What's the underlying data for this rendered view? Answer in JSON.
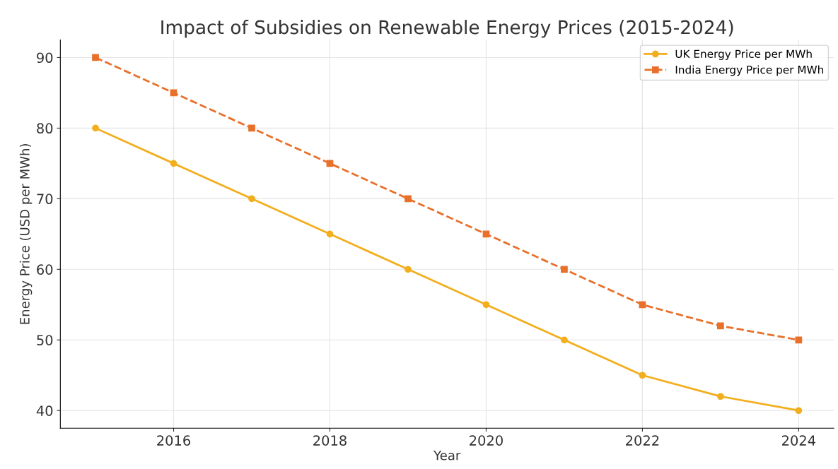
{
  "chart_data": {
    "type": "line",
    "title": "Impact of Subsidies on Renewable Energy Prices (2015-2024)",
    "xlabel": "Year",
    "ylabel": "Energy Price (USD per MWh)",
    "x": [
      2015,
      2016,
      2017,
      2018,
      2019,
      2020,
      2021,
      2022,
      2023,
      2024
    ],
    "series": [
      {
        "name": "UK Energy Price per MWh",
        "color": "#f2ae1c",
        "marker": "circle",
        "line_style": "solid",
        "values": [
          80,
          75,
          70,
          65,
          60,
          55,
          50,
          45,
          42,
          40
        ]
      },
      {
        "name": "India Energy Price per MWh",
        "color": "#e8702a",
        "marker": "square",
        "line_style": "dashed",
        "values": [
          90,
          85,
          80,
          75,
          70,
          65,
          60,
          55,
          52,
          50
        ]
      }
    ],
    "xlim": [
      2014.55,
      2024.45
    ],
    "xticks": [
      2016,
      2018,
      2020,
      2022,
      2024
    ],
    "ylim": [
      37.5,
      92.5
    ],
    "yticks": [
      40,
      50,
      60,
      70,
      80,
      90
    ],
    "grid": true,
    "legend": "top right"
  }
}
